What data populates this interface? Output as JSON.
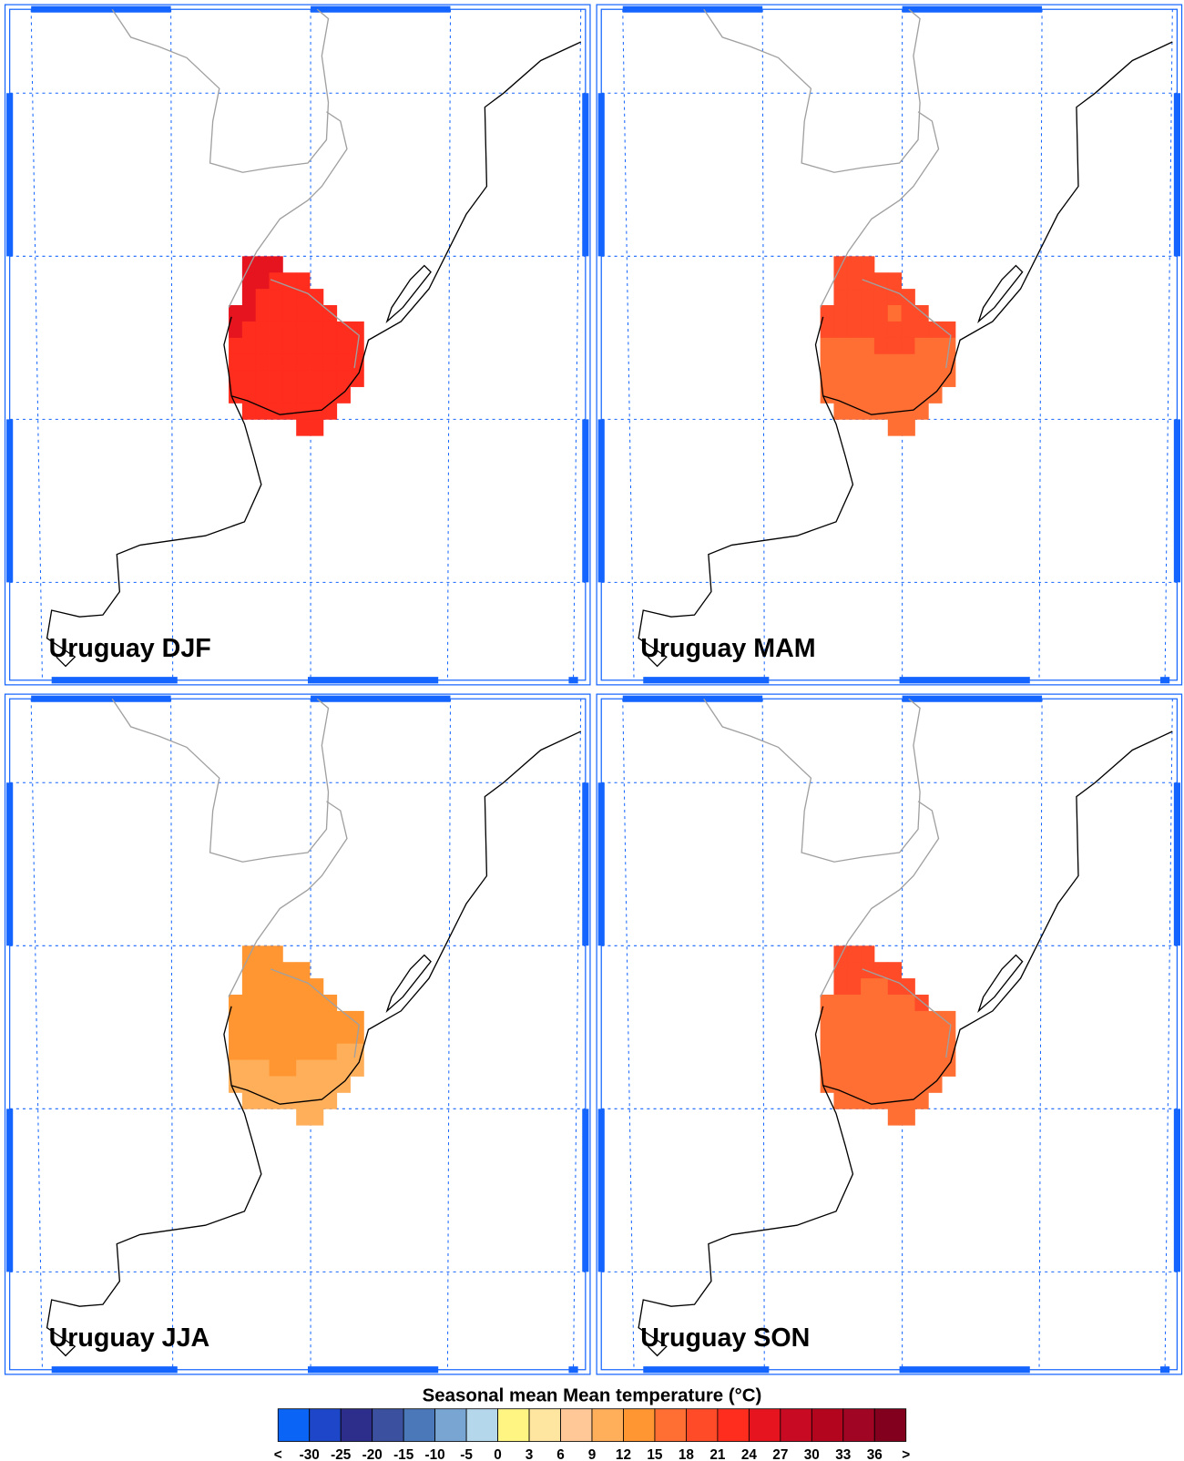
{
  "panels": [
    {
      "title": "Uruguay DJF",
      "cells": [
        [
          null,
          25,
          25,
          25,
          null,
          null,
          null,
          null,
          null,
          null
        ],
        [
          null,
          25,
          25,
          23,
          23,
          23,
          null,
          null,
          null,
          null
        ],
        [
          null,
          25,
          23,
          23,
          23,
          23,
          23,
          null,
          null,
          null
        ],
        [
          25,
          25,
          23,
          23,
          23,
          23,
          23,
          23,
          null,
          null
        ],
        [
          25,
          23,
          23,
          23,
          23,
          23,
          23,
          23,
          23,
          23
        ],
        [
          23,
          23,
          23,
          23,
          23,
          23,
          23,
          23,
          23,
          23
        ],
        [
          23,
          23,
          23,
          23,
          23,
          23,
          23,
          23,
          23,
          23
        ],
        [
          23,
          23,
          23,
          23,
          23,
          23,
          23,
          23,
          23,
          23
        ],
        [
          23,
          23,
          23,
          23,
          23,
          23,
          23,
          23,
          23,
          null
        ],
        [
          null,
          23,
          23,
          23,
          23,
          23,
          23,
          23,
          null,
          null
        ],
        [
          null,
          null,
          null,
          null,
          null,
          23,
          23,
          null,
          null,
          null
        ]
      ]
    },
    {
      "title": "Uruguay MAM",
      "cells": [
        [
          null,
          19.5,
          19.5,
          19.5,
          null,
          null,
          null,
          null,
          null,
          null
        ],
        [
          null,
          19.5,
          19.5,
          19.5,
          19.5,
          19.5,
          null,
          null,
          null,
          null
        ],
        [
          null,
          19.5,
          19.5,
          19.5,
          19.5,
          19.5,
          19.5,
          null,
          null,
          null
        ],
        [
          19.5,
          19.5,
          19.5,
          19.5,
          19.5,
          16.5,
          19.5,
          19.5,
          null,
          null
        ],
        [
          19.5,
          19.5,
          19.5,
          19.5,
          19.5,
          19.5,
          19.5,
          19.5,
          19.5,
          19.5
        ],
        [
          16.5,
          16.5,
          16.5,
          16.5,
          19.5,
          19.5,
          19.5,
          16.5,
          16.5,
          16.5
        ],
        [
          16.5,
          16.5,
          16.5,
          16.5,
          16.5,
          16.5,
          16.5,
          16.5,
          16.5,
          16.5
        ],
        [
          16.5,
          16.5,
          16.5,
          16.5,
          16.5,
          16.5,
          16.5,
          16.5,
          16.5,
          16.5
        ],
        [
          16.5,
          16.5,
          16.5,
          16.5,
          16.5,
          16.5,
          16.5,
          16.5,
          16.5,
          null
        ],
        [
          null,
          16.5,
          16.5,
          16.5,
          16.5,
          16.5,
          16.5,
          16.5,
          null,
          null
        ],
        [
          null,
          null,
          null,
          null,
          null,
          16.5,
          16.5,
          null,
          null,
          null
        ]
      ]
    },
    {
      "title": "Uruguay JJA",
      "cells": [
        [
          null,
          13.5,
          13.5,
          13.5,
          null,
          null,
          null,
          null,
          null,
          null
        ],
        [
          null,
          13.5,
          13.5,
          13.5,
          13.5,
          13.5,
          null,
          null,
          null,
          null
        ],
        [
          null,
          13.5,
          13.5,
          13.5,
          13.5,
          13.5,
          13.5,
          null,
          null,
          null
        ],
        [
          13.5,
          13.5,
          13.5,
          13.5,
          13.5,
          13.5,
          13.5,
          13.5,
          null,
          null
        ],
        [
          13.5,
          13.5,
          13.5,
          13.5,
          13.5,
          13.5,
          13.5,
          13.5,
          13.5,
          13.5
        ],
        [
          13.5,
          13.5,
          13.5,
          13.5,
          13.5,
          13.5,
          13.5,
          13.5,
          13.5,
          13.5
        ],
        [
          13.5,
          13.5,
          13.5,
          13.5,
          13.5,
          13.5,
          13.5,
          13.5,
          10.5,
          10.5
        ],
        [
          10.5,
          10.5,
          10.5,
          13.5,
          13.5,
          10.5,
          10.5,
          10.5,
          10.5,
          10.5
        ],
        [
          10.5,
          10.5,
          10.5,
          10.5,
          10.5,
          10.5,
          10.5,
          10.5,
          10.5,
          null
        ],
        [
          null,
          10.5,
          10.5,
          10.5,
          10.5,
          10.5,
          10.5,
          10.5,
          null,
          null
        ],
        [
          null,
          null,
          null,
          null,
          null,
          10.5,
          10.5,
          null,
          null,
          null
        ]
      ]
    },
    {
      "title": "Uruguay SON",
      "cells": [
        [
          null,
          19.5,
          19.5,
          19.5,
          null,
          null,
          null,
          null,
          null,
          null
        ],
        [
          null,
          19.5,
          19.5,
          19.5,
          19.5,
          19.5,
          null,
          null,
          null,
          null
        ],
        [
          null,
          19.5,
          19.5,
          16.5,
          16.5,
          19.5,
          19.5,
          null,
          null,
          null
        ],
        [
          16.5,
          16.5,
          16.5,
          16.5,
          16.5,
          16.5,
          16.5,
          19.5,
          null,
          null
        ],
        [
          16.5,
          16.5,
          16.5,
          16.5,
          16.5,
          16.5,
          16.5,
          16.5,
          16.5,
          16.5
        ],
        [
          16.5,
          16.5,
          16.5,
          16.5,
          16.5,
          16.5,
          16.5,
          16.5,
          16.5,
          16.5
        ],
        [
          16.5,
          16.5,
          16.5,
          16.5,
          16.5,
          16.5,
          16.5,
          16.5,
          16.5,
          16.5
        ],
        [
          16.5,
          16.5,
          16.5,
          16.5,
          16.5,
          16.5,
          16.5,
          16.5,
          16.5,
          16.5
        ],
        [
          16.5,
          16.5,
          16.5,
          16.5,
          16.5,
          16.5,
          16.5,
          16.5,
          16.5,
          null
        ],
        [
          null,
          16.5,
          16.5,
          16.5,
          16.5,
          16.5,
          16.5,
          16.5,
          null,
          null
        ],
        [
          null,
          null,
          null,
          null,
          null,
          16.5,
          16.5,
          null,
          null,
          null
        ]
      ]
    }
  ],
  "colorbar": {
    "title": "Seasonal mean Mean temperature (°C)",
    "levels": [
      -30,
      -25,
      -20,
      -15,
      -10,
      -5,
      0,
      3,
      6,
      9,
      12,
      15,
      18,
      21,
      24,
      27,
      30,
      33,
      36
    ],
    "below_label": "<",
    "above_label": ">",
    "colors": [
      "#0a64f5",
      "#1e46c8",
      "#2d2d8c",
      "#3c50a0",
      "#4b78b9",
      "#78a5d2",
      "#b4d7eb",
      "#fff582",
      "#ffe6a0",
      "#ffc896",
      "#ffaf5a",
      "#ff9632",
      "#ff6e32",
      "#ff4b28",
      "#ff2d1e",
      "#e6141e",
      "#c80a23",
      "#b4051e",
      "#a00523",
      "#82001e"
    ]
  }
}
